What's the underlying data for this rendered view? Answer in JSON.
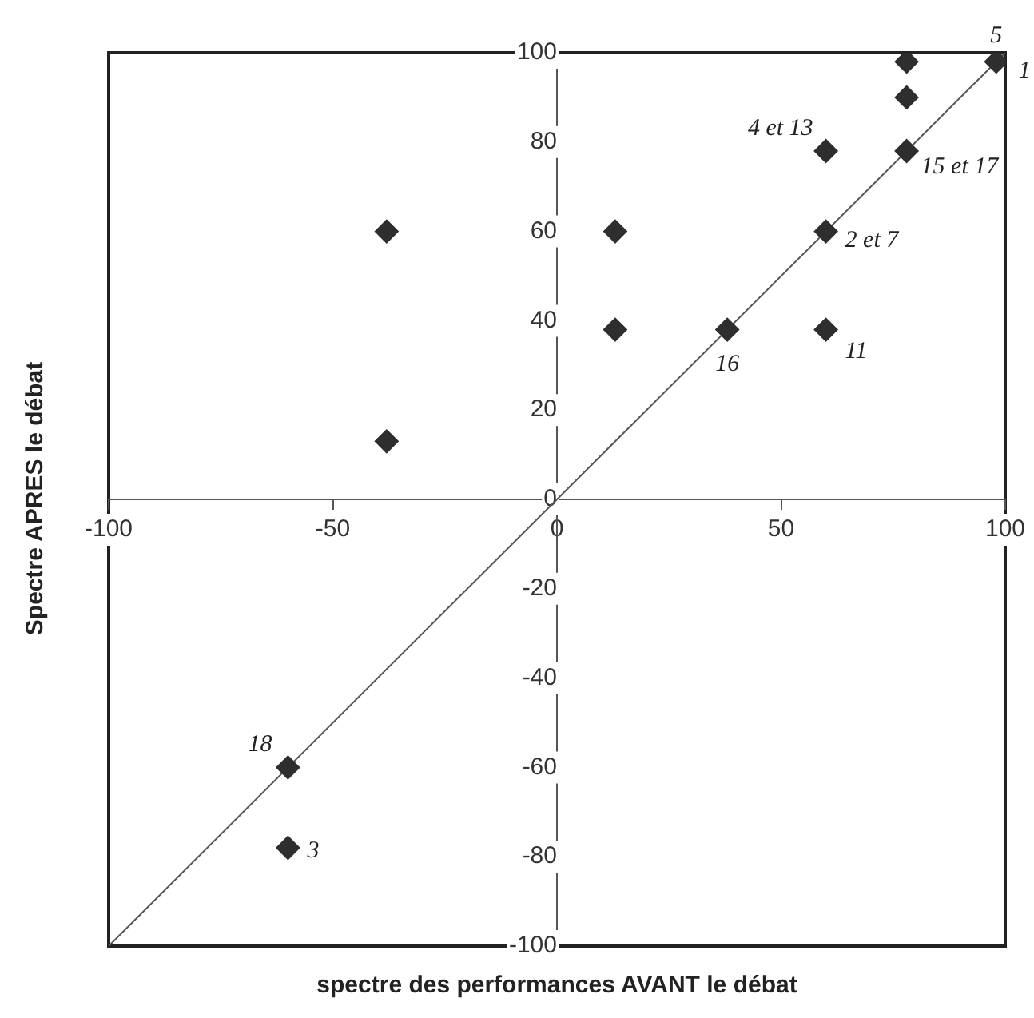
{
  "chart_data": {
    "type": "scatter",
    "xlabel": "spectre des performances AVANT le débat",
    "ylabel": "Spectre APRES le débat",
    "xlim": [
      -100,
      100
    ],
    "xticks": [
      -100,
      -50,
      0,
      50,
      100
    ],
    "ylim": [
      -100,
      100
    ],
    "yticks": [
      -100,
      -80,
      -60,
      -40,
      -20,
      0,
      20,
      40,
      60,
      80,
      100
    ],
    "grid": false,
    "legend": false,
    "series": [
      {
        "color": "#2e2e2e",
        "marker": "diamond",
        "x": [
          98,
          78,
          78,
          78,
          60,
          60,
          60,
          38,
          13,
          13,
          -38,
          -38,
          -60,
          -60
        ],
        "values": [
          98,
          98,
          90,
          78,
          78,
          60,
          38,
          38,
          38,
          60,
          60,
          13,
          -60,
          -78
        ]
      },
      {
        "type": "line",
        "color": "#555555",
        "marker": "none",
        "line_style": "solid",
        "x": [
          -100,
          100
        ],
        "values": [
          -100,
          100
        ]
      }
    ],
    "annotations": [
      {
        "text": "5",
        "x": 98,
        "y": 98
      },
      {
        "text": "1",
        "x": 98,
        "y": 98
      },
      {
        "text": "4 et 13",
        "x": 60,
        "y": 78
      },
      {
        "text": "15 et 17",
        "x": 78,
        "y": 78
      },
      {
        "text": "2 et 7",
        "x": 60,
        "y": 60
      },
      {
        "text": "16",
        "x": 38,
        "y": 38
      },
      {
        "text": "11",
        "x": 60,
        "y": 38
      },
      {
        "text": "18",
        "x": -60,
        "y": -60
      },
      {
        "text": "3",
        "x": -60,
        "y": -78
      }
    ]
  }
}
